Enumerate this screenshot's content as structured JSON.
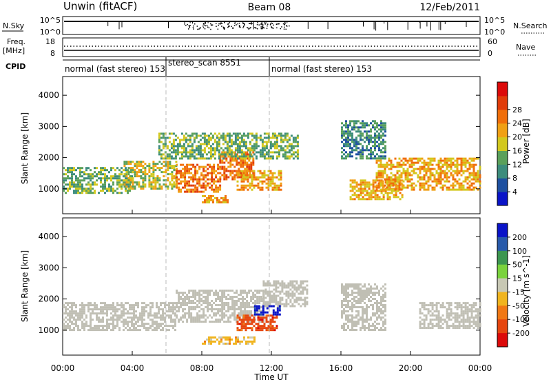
{
  "header": {
    "title_left": "Unwin (fitACF)",
    "title_center": "Beam 08",
    "title_right": "12/Feb/2011"
  },
  "nsky_panel": {
    "left_label": "N.Sky",
    "left_ticks": [
      "10^5",
      "10^0"
    ],
    "right_ticks": [
      "10^5",
      "10^0"
    ],
    "right_label": "N.Search"
  },
  "freq_panel": {
    "left_label_line1": "Freq.",
    "left_label_line2": "[MHz]",
    "left_ticks": [
      "18",
      "8"
    ],
    "right_ticks": [
      "60",
      "0"
    ],
    "right_label": "Nave"
  },
  "cpid_panel": {
    "label": "CPID",
    "segments": [
      {
        "text": "normal (fast stereo) 153",
        "start_hour": 0,
        "end_hour": 6
      },
      {
        "text": "stereo_scan 8551",
        "start_hour": 6,
        "end_hour": 12
      },
      {
        "text": "normal (fast stereo) 153",
        "start_hour": 12,
        "end_hour": 24
      }
    ]
  },
  "time_axis": {
    "label": "Time UT",
    "ticks": [
      "00:00",
      "04:00",
      "08:00",
      "12:00",
      "16:00",
      "20:00",
      "00:00"
    ]
  },
  "colors": {
    "power_scale": [
      "#0a14c8",
      "#1e50a0",
      "#3c8c7c",
      "#5aa05a",
      "#d2c81e",
      "#f0a014",
      "#f06e0a",
      "#e13c0a",
      "#dc0a0a"
    ],
    "velocity_scale": [
      "#0a14c8",
      "#285aaa",
      "#3c9650",
      "#7ad23c",
      "#c8c8b4",
      "#f0b41e",
      "#f07814",
      "#e6460f",
      "#dc0a0a"
    ],
    "ground_scatter": "#c0bfb4"
  },
  "chart_data": [
    {
      "type": "heatmap",
      "title": "Power [dB]",
      "ylabel": "Slant Range [km]",
      "xlabel": "",
      "x_range_hours": [
        0,
        24
      ],
      "ylim": [
        200,
        4600
      ],
      "yticks": [
        "1000",
        "2000",
        "3000",
        "4000"
      ],
      "colorbar_label": "Power [dB]",
      "colorbar_ticks": [
        "4",
        "8",
        "12",
        "16",
        "20",
        "24",
        "28"
      ],
      "echo_bands": [
        {
          "start_hour": 0.0,
          "end_hour": 4.0,
          "range_km": [
            900,
            1700
          ],
          "power_db": 14
        },
        {
          "start_hour": 3.5,
          "end_hour": 6.5,
          "range_km": [
            1000,
            1900
          ],
          "power_db": 16
        },
        {
          "start_hour": 6.5,
          "end_hour": 9.0,
          "range_km": [
            900,
            1800
          ],
          "power_db": 22
        },
        {
          "start_hour": 9.0,
          "end_hour": 11.0,
          "range_km": [
            1300,
            2200
          ],
          "power_db": 24
        },
        {
          "start_hour": 10.0,
          "end_hour": 12.5,
          "range_km": [
            1000,
            1600
          ],
          "power_db": 20
        },
        {
          "start_hour": 8.0,
          "end_hour": 9.5,
          "range_km": [
            550,
            800
          ],
          "power_db": 20
        },
        {
          "start_hour": 5.5,
          "end_hour": 13.5,
          "range_km": [
            2000,
            2800
          ],
          "power_db": 12
        },
        {
          "start_hour": 16.5,
          "end_hour": 19.5,
          "range_km": [
            700,
            1300
          ],
          "power_db": 18
        },
        {
          "start_hour": 18.0,
          "end_hour": 24.0,
          "range_km": [
            1000,
            2000
          ],
          "power_db": 18
        },
        {
          "start_hour": 16.0,
          "end_hour": 18.5,
          "range_km": [
            2000,
            3200
          ],
          "power_db": 8
        }
      ]
    },
    {
      "type": "heatmap",
      "title": "Velocity [m s^-1]",
      "ylabel": "Slant Range [km]",
      "xlabel": "Time UT",
      "x_range_hours": [
        0,
        24
      ],
      "ylim": [
        200,
        4600
      ],
      "yticks": [
        "1000",
        "2000",
        "3000",
        "4000"
      ],
      "colorbar_label": "Velocity [m s^-1]",
      "colorbar_ticks": [
        "200",
        "100",
        "50",
        "15",
        "-15",
        "-50",
        "-100",
        "-200"
      ],
      "echo_bands": [
        {
          "start_hour": 0.0,
          "end_hour": 6.5,
          "range_km": [
            1000,
            1900
          ],
          "velocity": 0,
          "ground_scatter": true
        },
        {
          "start_hour": 6.5,
          "end_hour": 11.5,
          "range_km": [
            1300,
            2300
          ],
          "velocity": 0,
          "ground_scatter": true
        },
        {
          "start_hour": 11.5,
          "end_hour": 14.0,
          "range_km": [
            1800,
            2600
          ],
          "velocity": 0,
          "ground_scatter": true
        },
        {
          "start_hour": 16.0,
          "end_hour": 18.5,
          "range_km": [
            1000,
            2500
          ],
          "velocity": 0,
          "ground_scatter": true
        },
        {
          "start_hour": 20.5,
          "end_hour": 24.0,
          "range_km": [
            1100,
            1900
          ],
          "velocity": 0,
          "ground_scatter": true
        },
        {
          "start_hour": 8.0,
          "end_hour": 11.0,
          "range_km": [
            550,
            800
          ],
          "velocity": -40
        },
        {
          "start_hour": 10.0,
          "end_hour": 12.3,
          "range_km": [
            1000,
            1500
          ],
          "velocity": -120
        },
        {
          "start_hour": 11.0,
          "end_hour": 12.5,
          "range_km": [
            1500,
            1800
          ],
          "velocity": 150
        }
      ]
    }
  ]
}
